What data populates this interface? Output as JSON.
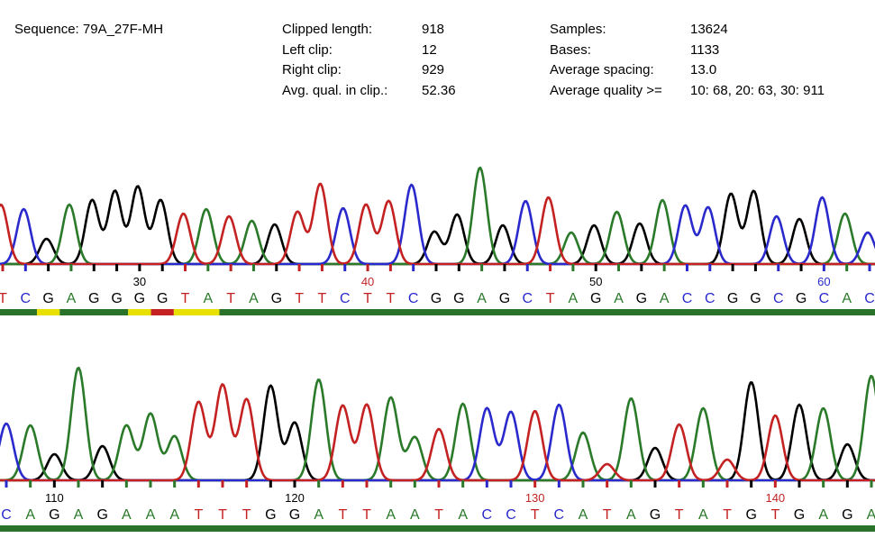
{
  "header": {
    "sequence_label": "Sequence: 79A_27F-MH",
    "stats_left": [
      {
        "label": "Clipped length:",
        "value": "918"
      },
      {
        "label": "Left clip:",
        "value": "12"
      },
      {
        "label": "Right clip:",
        "value": "929"
      },
      {
        "label": "Avg. qual. in clip.:",
        "value": "52.36"
      }
    ],
    "stats_right": [
      {
        "label": "Samples:",
        "value": "13624"
      },
      {
        "label": "Bases:",
        "value": "1133"
      },
      {
        "label": "Average spacing:",
        "value": "13.0"
      },
      {
        "label": "Average quality >=",
        "value": "10: 68, 20: 63, 30: 911"
      }
    ]
  },
  "colors": {
    "A": "#2a7a2a",
    "C": "#2a2acc",
    "G": "#000000",
    "T": "#c42222",
    "quality_high": "#2a722a",
    "quality_mid": "#e8e000",
    "quality_low": "#c42222"
  },
  "chart_data": [
    {
      "type": "chromatogram",
      "start_index": 24,
      "bases": "TCGAGGGGTATAGTTCTTCGGAGCTAGAGACCGGCGCAC",
      "peak_intensity": [
        66,
        61,
        28,
        66,
        71,
        81,
        86,
        71,
        56,
        61,
        53,
        48,
        44,
        58,
        89,
        62,
        66,
        70,
        88,
        36,
        55,
        107,
        43,
        70,
        74,
        35,
        43,
        58,
        45,
        71,
        65,
        63,
        78,
        81,
        53,
        50,
        74,
        56,
        35
      ],
      "position_labels": [
        "30",
        "40",
        "50",
        "60"
      ],
      "quality_segments": [
        {
          "from": 24,
          "to": 25,
          "level": "high"
        },
        {
          "from": 26,
          "to": 26,
          "level": "mid"
        },
        {
          "from": 27,
          "to": 29,
          "level": "high"
        },
        {
          "from": 30,
          "to": 30,
          "level": "mid"
        },
        {
          "from": 31,
          "to": 31,
          "level": "low"
        },
        {
          "from": 32,
          "to": 33,
          "level": "mid"
        },
        {
          "from": 34,
          "to": 62,
          "level": "high"
        }
      ]
    },
    {
      "type": "chromatogram",
      "start_index": 108,
      "bases": "CAGAGAAATTTGGATTAATACCTCATAGTATGTGAGA",
      "peak_intensity": [
        63,
        61,
        29,
        125,
        38,
        61,
        74,
        49,
        87,
        106,
        90,
        105,
        64,
        112,
        83,
        84,
        92,
        48,
        57,
        85,
        80,
        76,
        77,
        84,
        53,
        18,
        91,
        36,
        62,
        80,
        23,
        109,
        72,
        84,
        80,
        40,
        116
      ],
      "position_labels": [
        "110",
        "120",
        "130",
        "140"
      ],
      "quality_segments": [
        {
          "from": 108,
          "to": 144,
          "level": "high"
        }
      ]
    }
  ]
}
